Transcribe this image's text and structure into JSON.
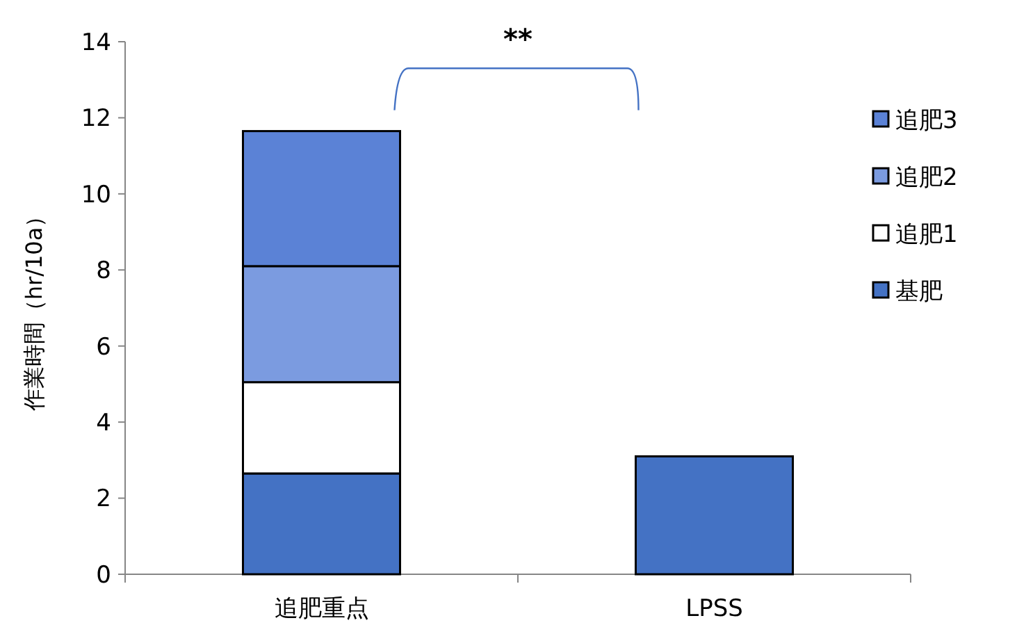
{
  "chart_data": {
    "type": "bar",
    "stacked": true,
    "ylabel": "作業時間（hr/10a）",
    "categories": [
      "追肥重点",
      "LPSS"
    ],
    "series": [
      {
        "name": "基肥",
        "color": "#4472c4",
        "values": [
          2.65,
          3.1
        ]
      },
      {
        "name": "追肥1",
        "color": "#ffffff",
        "values": [
          2.4,
          null
        ]
      },
      {
        "name": "追肥2",
        "color": "#7b9be0",
        "values": [
          3.05,
          null
        ]
      },
      {
        "name": "追肥3",
        "color": "#5b82d6",
        "values": [
          3.55,
          null
        ]
      }
    ],
    "ylim": [
      0,
      14
    ],
    "yticks": [
      0,
      2,
      4,
      6,
      8,
      10,
      12,
      14
    ],
    "grid": false,
    "legend": "right",
    "annotations": [
      "**"
    ]
  }
}
